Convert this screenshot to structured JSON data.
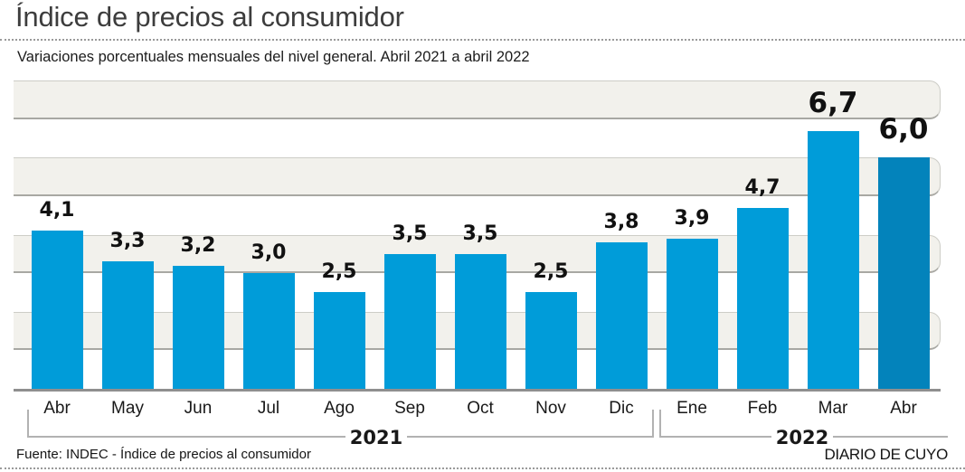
{
  "header": {
    "title": "Índice de precios al consumidor",
    "subtitle": "Variaciones porcentuales mensuales del nivel general. Abril 2021 a abril 2022"
  },
  "footer": {
    "source": "Fuente: INDEC - Índice de precios al consumidor",
    "credit": "DIARIO DE CUYO"
  },
  "colors": {
    "bar": "#009cd9",
    "bar_highlight": "#0383bb",
    "band_fill": "#f2f1ec",
    "band_border": "#cdcdc7",
    "baseline": "#8f8f8f",
    "label_text": "#111111"
  },
  "chart_data": {
    "type": "bar",
    "title": "Índice de precios al consumidor",
    "subtitle": "Variaciones porcentuales mensuales del nivel general. Abril 2021 a abril 2022",
    "categories": [
      "Abr",
      "May",
      "Jun",
      "Jul",
      "Ago",
      "Sep",
      "Oct",
      "Nov",
      "Dic",
      "Ene",
      "Feb",
      "Mar",
      "Abr"
    ],
    "values": [
      4.1,
      3.3,
      3.2,
      3.0,
      2.5,
      3.5,
      3.5,
      2.5,
      3.8,
      3.9,
      4.7,
      6.7,
      6.0
    ],
    "value_labels": [
      "4,1",
      "3,3",
      "3,2",
      "3,0",
      "2,5",
      "3,5",
      "3,5",
      "2,5",
      "3,8",
      "3,9",
      "4,7",
      "6,7",
      "6,0"
    ],
    "ylim": [
      0,
      8
    ],
    "grid": "alternating horizontal bands",
    "grid_band_ranges": [
      [
        7,
        8
      ],
      [
        5,
        6
      ],
      [
        3,
        4
      ],
      [
        1,
        2
      ]
    ],
    "legend": null,
    "xlabel": "",
    "ylabel": "",
    "year_groups": [
      {
        "label": "2021",
        "start_index": 0,
        "end_index": 8
      },
      {
        "label": "2022",
        "start_index": 9,
        "end_index": 12
      }
    ],
    "highlight_index": 12,
    "big_label_indices": [
      11,
      12
    ]
  }
}
